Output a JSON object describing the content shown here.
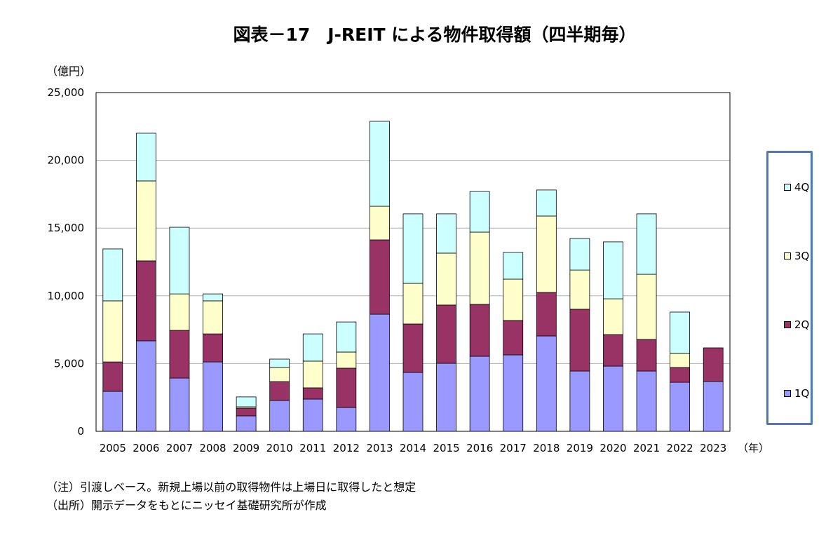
{
  "chart_data": {
    "type": "bar",
    "stacked": true,
    "title": "図表－17　J-REIT による物件取得額（四半期毎）",
    "ylabel": "（億円）",
    "xlabel": "（年）",
    "ylim": [
      0,
      25000
    ],
    "yticks": [
      "0",
      "5,000",
      "10,000",
      "15,000",
      "20,000",
      "25,000"
    ],
    "grid": true,
    "legend_position": "right",
    "categories": [
      "2005",
      "2006",
      "2007",
      "2008",
      "2009",
      "2010",
      "2011",
      "2012",
      "2013",
      "2014",
      "2015",
      "2016",
      "2017",
      "2018",
      "2019",
      "2020",
      "2021",
      "2022",
      "2023"
    ],
    "series": [
      {
        "name": "1Q",
        "color": "#9999ff",
        "values": [
          2950,
          6680,
          3930,
          5120,
          1140,
          2280,
          2380,
          1760,
          8640,
          4350,
          5020,
          5540,
          5640,
          7040,
          4450,
          4810,
          4450,
          3620,
          3670
        ]
      },
      {
        "name": "2Q",
        "color": "#993366",
        "values": [
          2170,
          5900,
          3520,
          2070,
          570,
          1390,
          830,
          2900,
          5490,
          3570,
          4300,
          3830,
          2540,
          3210,
          4560,
          2330,
          2330,
          1090,
          2490
        ]
      },
      {
        "name": "3Q",
        "color": "#ffffcc",
        "values": [
          4510,
          5900,
          2690,
          2440,
          100,
          1040,
          1970,
          1190,
          2480,
          3000,
          3830,
          5330,
          3050,
          5640,
          2890,
          2640,
          4810,
          1040,
          0
        ]
      },
      {
        "name": "4Q",
        "color": "#ccffff",
        "values": [
          3830,
          3520,
          4920,
          510,
          730,
          620,
          2010,
          2220,
          6270,
          5130,
          2900,
          3000,
          1970,
          1920,
          2330,
          4200,
          4460,
          3050,
          0
        ]
      }
    ]
  },
  "notes": [
    "（注）引渡しベース。新規上場以前の取得物件は上場日に取得したと想定",
    "（出所）開示データをもとにニッセイ基礎研究所が作成"
  ]
}
